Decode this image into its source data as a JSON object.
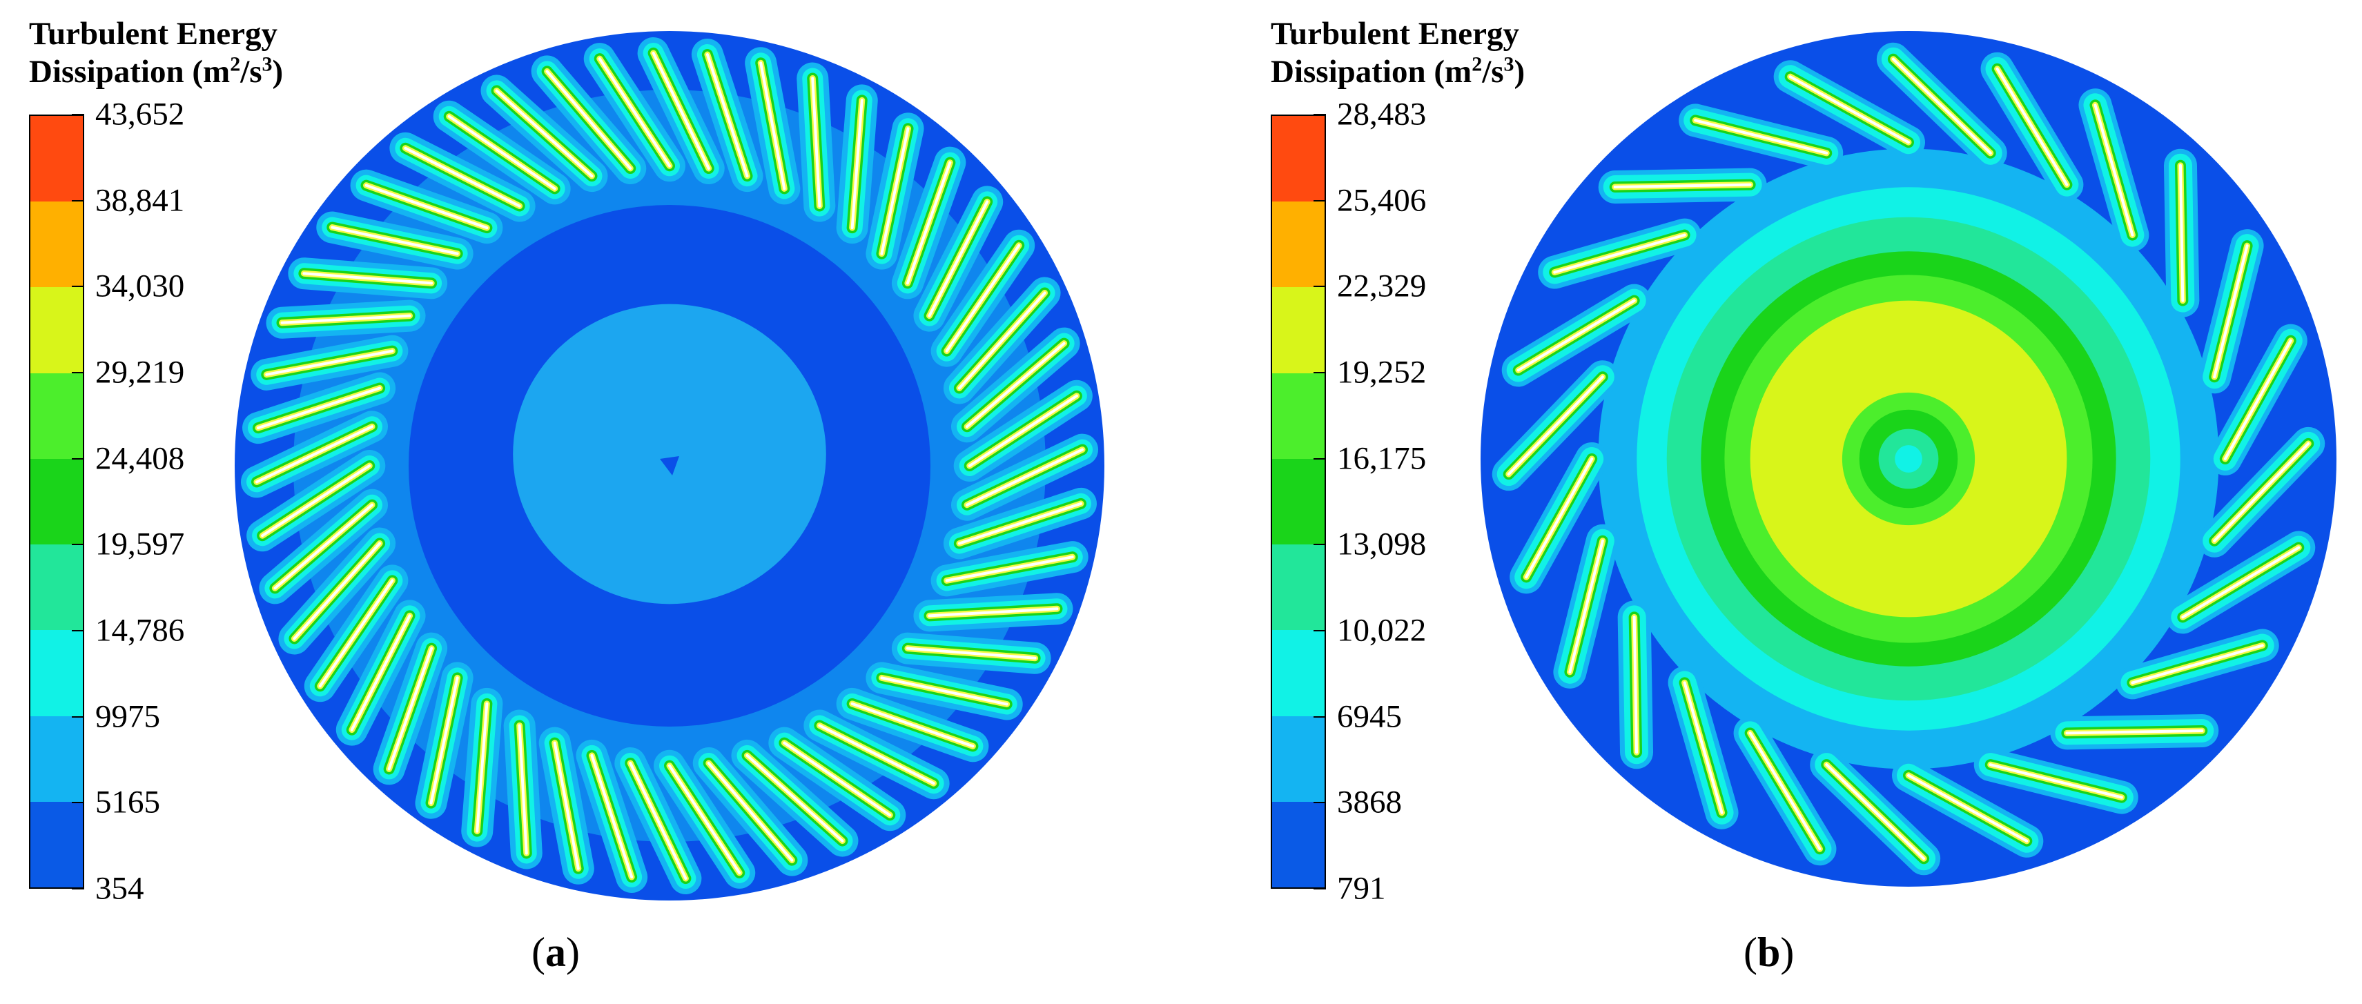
{
  "panels": [
    {
      "id": "a",
      "legend": {
        "title_line1": "Turbulent Energy",
        "title_line2_pre": "Dissipation (m",
        "title_line2_sup1": "2",
        "title_line2_mid": "/s",
        "title_line2_sup2": "3",
        "title_line2_post": ")",
        "ticks": [
          "43,652",
          "38,841",
          "34,030",
          "29,219",
          "24,408",
          "19,597",
          "14,786",
          "9975",
          "5165",
          "354"
        ]
      },
      "label_open": "(",
      "label_letter": "a",
      "label_close": ")",
      "blade_count": 48,
      "core_pattern": "uniform-low-center"
    },
    {
      "id": "b",
      "legend": {
        "title_line1": "Turbulent Energy",
        "title_line2_pre": "Dissipation (m",
        "title_line2_sup1": "2",
        "title_line2_mid": "/s",
        "title_line2_sup2": "3",
        "title_line2_post": ")",
        "ticks": [
          "28,483",
          "25,406",
          "22,329",
          "19,252",
          "16,175",
          "13,098",
          "10,022",
          "6945",
          "3868",
          "791"
        ]
      },
      "label_open": "(",
      "label_letter": "b",
      "label_close": ")",
      "blade_count": 24,
      "core_pattern": "concentric-rings"
    }
  ],
  "colormap": [
    "#ff4a10",
    "#ffb000",
    "#d8f51a",
    "#4cee2c",
    "#1ad41a",
    "#22e69a",
    "#11f2e6",
    "#14b4f2",
    "#0a5ae6"
  ],
  "colors": {
    "field_low": "#0a4fe8",
    "blade_halo_1": "#14b4f2",
    "blade_halo_2": "#11f2e6",
    "blade_core": "#f5fa45",
    "blade_edge": "#ffffff",
    "core_light": "#1ca6f0"
  }
}
